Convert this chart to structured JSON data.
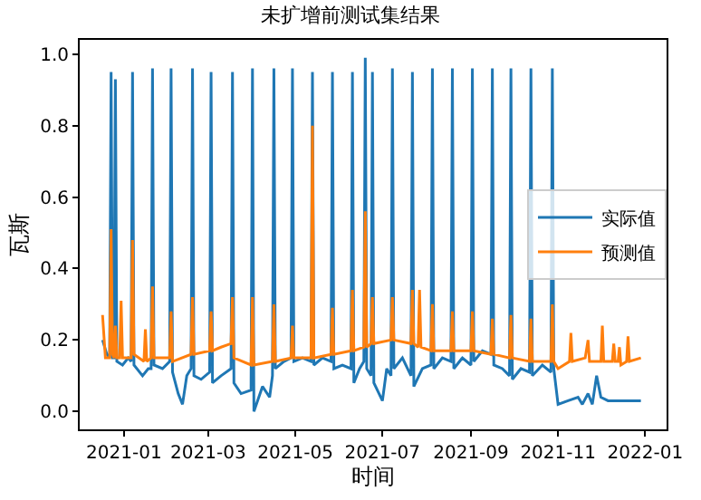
{
  "chart_data": {
    "type": "line",
    "title": "未扩增前测试集结果",
    "xlabel": "时间",
    "ylabel": "瓦斯",
    "xlim": [
      "2020-12-01",
      "2022-01-16"
    ],
    "xticks": [
      {
        "value": "2021-01-01",
        "label": "2021-01"
      },
      {
        "value": "2021-03-01",
        "label": "2021-03"
      },
      {
        "value": "2021-05-01",
        "label": "2021-05"
      },
      {
        "value": "2021-07-01",
        "label": "2021-07"
      },
      {
        "value": "2021-09-01",
        "label": "2021-09"
      },
      {
        "value": "2021-11-01",
        "label": "2021-11"
      },
      {
        "value": "2022-01-01",
        "label": "2022-01"
      }
    ],
    "ylim": [
      -0.05,
      1.04
    ],
    "yticks": [
      {
        "value": 0,
        "label": "0.0"
      },
      {
        "value": 0.2,
        "label": "0.2"
      },
      {
        "value": 0.4,
        "label": "0.4"
      },
      {
        "value": 0.6,
        "label": "0.6"
      },
      {
        "value": 0.8,
        "label": "0.8"
      },
      {
        "value": 1,
        "label": "1.0"
      }
    ],
    "legend": "right",
    "marker": "none",
    "line_style": "solid",
    "series": [
      {
        "name": "实际值",
        "color": "#1f77b4",
        "x": [
          "2020-12-17",
          "2020-12-20",
          "2020-12-22",
          "2020-12-23",
          "2020-12-24",
          "2020-12-25",
          "2020-12-26",
          "2020-12-27",
          "2020-12-31",
          "2021-01-04",
          "2021-01-06",
          "2021-01-07",
          "2021-01-08",
          "2021-01-14",
          "2021-01-18",
          "2021-01-20",
          "2021-01-21",
          "2021-01-22",
          "2021-01-28",
          "2021-02-02",
          "2021-02-03",
          "2021-02-04",
          "2021-02-08",
          "2021-02-11",
          "2021-02-14",
          "2021-02-17",
          "2021-02-18",
          "2021-02-19",
          "2021-02-24",
          "2021-03-02",
          "2021-03-03",
          "2021-03-04",
          "2021-03-10",
          "2021-03-17",
          "2021-03-18",
          "2021-03-19",
          "2021-03-24",
          "2021-03-31",
          "2021-04-01",
          "2021-04-02",
          "2021-04-08",
          "2021-04-13",
          "2021-04-15",
          "2021-04-16",
          "2021-04-17",
          "2021-04-23",
          "2021-04-28",
          "2021-04-29",
          "2021-04-30",
          "2021-05-06",
          "2021-05-12",
          "2021-05-13",
          "2021-05-14",
          "2021-05-20",
          "2021-05-26",
          "2021-05-27",
          "2021-05-28",
          "2021-06-03",
          "2021-06-09",
          "2021-06-10",
          "2021-06-11",
          "2021-06-15",
          "2021-06-18",
          "2021-06-19",
          "2021-06-20",
          "2021-06-23",
          "2021-06-24",
          "2021-06-25",
          "2021-07-01",
          "2021-07-04",
          "2021-07-07",
          "2021-07-08",
          "2021-07-09",
          "2021-07-15",
          "2021-07-21",
          "2021-07-22",
          "2021-07-23",
          "2021-07-29",
          "2021-08-04",
          "2021-08-05",
          "2021-08-06",
          "2021-08-12",
          "2021-08-18",
          "2021-08-19",
          "2021-08-20",
          "2021-08-26",
          "2021-09-01",
          "2021-09-02",
          "2021-09-03",
          "2021-09-09",
          "2021-09-15",
          "2021-09-16",
          "2021-09-17",
          "2021-09-23",
          "2021-09-28",
          "2021-09-29",
          "2021-09-30",
          "2021-10-06",
          "2021-10-12",
          "2021-10-13",
          "2021-10-14",
          "2021-10-21",
          "2021-10-27",
          "2021-10-28",
          "2021-10-29",
          "2021-11-01",
          "2021-11-08",
          "2021-11-15",
          "2021-11-18",
          "2021-11-22",
          "2021-11-25",
          "2021-11-28",
          "2021-12-01",
          "2021-12-06",
          "2021-12-15",
          "2021-12-25",
          "2021-12-29"
        ],
        "values": [
          0.2,
          0.16,
          0.15,
          0.95,
          0.15,
          0.15,
          0.93,
          0.14,
          0.13,
          0.15,
          0.14,
          0.95,
          0.13,
          0.1,
          0.12,
          0.12,
          0.96,
          0.13,
          0.12,
          0.14,
          0.96,
          0.11,
          0.05,
          0.02,
          0.1,
          0.12,
          0.96,
          0.1,
          0.09,
          0.11,
          0.95,
          0.08,
          0.1,
          0.12,
          0.95,
          0.08,
          0.05,
          0.06,
          0.96,
          0.0,
          0.07,
          0.04,
          0.1,
          0.96,
          0.12,
          0.14,
          0.15,
          0.96,
          0.14,
          0.15,
          0.14,
          0.95,
          0.13,
          0.15,
          0.14,
          0.95,
          0.12,
          0.13,
          0.12,
          0.95,
          0.08,
          0.12,
          0.14,
          0.99,
          0.12,
          0.1,
          0.95,
          0.08,
          0.03,
          0.12,
          0.1,
          0.96,
          0.12,
          0.15,
          0.1,
          0.95,
          0.07,
          0.12,
          0.13,
          0.96,
          0.12,
          0.15,
          0.14,
          0.96,
          0.12,
          0.15,
          0.13,
          0.96,
          0.14,
          0.17,
          0.16,
          0.96,
          0.13,
          0.12,
          0.1,
          0.96,
          0.09,
          0.12,
          0.11,
          0.96,
          0.1,
          0.13,
          0.11,
          0.96,
          0.12,
          0.02,
          0.03,
          0.04,
          0.02,
          0.05,
          0.02,
          0.1,
          0.04,
          0.03,
          0.03,
          0.03,
          0.03
        ]
      },
      {
        "name": "预测值",
        "color": "#ff7f0e",
        "x": [
          "2020-12-17",
          "2020-12-19",
          "2020-12-22",
          "2020-12-23",
          "2020-12-24",
          "2020-12-25",
          "2020-12-26",
          "2020-12-27",
          "2020-12-29",
          "2020-12-30",
          "2020-12-31",
          "2021-01-06",
          "2021-01-07",
          "2021-01-08",
          "2021-01-15",
          "2021-01-16",
          "2021-01-17",
          "2021-01-20",
          "2021-01-21",
          "2021-01-22",
          "2021-02-02",
          "2021-02-03",
          "2021-02-04",
          "2021-02-17",
          "2021-02-18",
          "2021-02-19",
          "2021-03-02",
          "2021-03-03",
          "2021-03-04",
          "2021-03-10",
          "2021-03-17",
          "2021-03-18",
          "2021-03-19",
          "2021-03-31",
          "2021-04-01",
          "2021-04-02",
          "2021-04-15",
          "2021-04-16",
          "2021-04-17",
          "2021-04-28",
          "2021-04-29",
          "2021-04-30",
          "2021-05-12",
          "2021-05-13",
          "2021-05-14",
          "2021-05-26",
          "2021-05-27",
          "2021-05-28",
          "2021-06-09",
          "2021-06-10",
          "2021-06-11",
          "2021-06-18",
          "2021-06-19",
          "2021-06-20",
          "2021-06-23",
          "2021-06-24",
          "2021-06-25",
          "2021-07-07",
          "2021-07-08",
          "2021-07-09",
          "2021-07-21",
          "2021-07-22",
          "2021-07-23",
          "2021-07-26",
          "2021-07-27",
          "2021-07-28",
          "2021-08-04",
          "2021-08-05",
          "2021-08-06",
          "2021-08-18",
          "2021-08-19",
          "2021-08-20",
          "2021-09-01",
          "2021-09-02",
          "2021-09-03",
          "2021-09-15",
          "2021-09-16",
          "2021-09-17",
          "2021-09-28",
          "2021-09-29",
          "2021-09-30",
          "2021-10-12",
          "2021-10-13",
          "2021-10-14",
          "2021-10-27",
          "2021-10-28",
          "2021-10-29",
          "2021-11-01",
          "2021-11-09",
          "2021-11-10",
          "2021-11-11",
          "2021-11-20",
          "2021-11-22",
          "2021-11-23",
          "2021-12-01",
          "2021-12-02",
          "2021-12-03",
          "2021-12-09",
          "2021-12-10",
          "2021-12-11",
          "2021-12-13",
          "2021-12-14",
          "2021-12-15",
          "2021-12-19",
          "2021-12-20",
          "2021-12-21",
          "2021-12-29"
        ],
        "values": [
          0.27,
          0.15,
          0.15,
          0.51,
          0.16,
          0.15,
          0.24,
          0.15,
          0.15,
          0.31,
          0.15,
          0.15,
          0.48,
          0.16,
          0.14,
          0.23,
          0.14,
          0.15,
          0.35,
          0.15,
          0.15,
          0.28,
          0.14,
          0.16,
          0.32,
          0.16,
          0.17,
          0.28,
          0.17,
          0.18,
          0.19,
          0.32,
          0.15,
          0.13,
          0.32,
          0.13,
          0.14,
          0.3,
          0.14,
          0.15,
          0.24,
          0.15,
          0.15,
          0.8,
          0.15,
          0.16,
          0.29,
          0.16,
          0.17,
          0.34,
          0.17,
          0.18,
          0.56,
          0.18,
          0.19,
          0.32,
          0.19,
          0.2,
          0.32,
          0.2,
          0.19,
          0.34,
          0.19,
          0.18,
          0.34,
          0.18,
          0.17,
          0.3,
          0.17,
          0.17,
          0.28,
          0.17,
          0.17,
          0.28,
          0.17,
          0.16,
          0.26,
          0.16,
          0.15,
          0.27,
          0.15,
          0.14,
          0.26,
          0.14,
          0.14,
          0.3,
          0.14,
          0.12,
          0.14,
          0.22,
          0.14,
          0.15,
          0.2,
          0.14,
          0.14,
          0.24,
          0.14,
          0.14,
          0.19,
          0.14,
          0.14,
          0.18,
          0.13,
          0.14,
          0.21,
          0.14,
          0.15
        ]
      }
    ]
  }
}
